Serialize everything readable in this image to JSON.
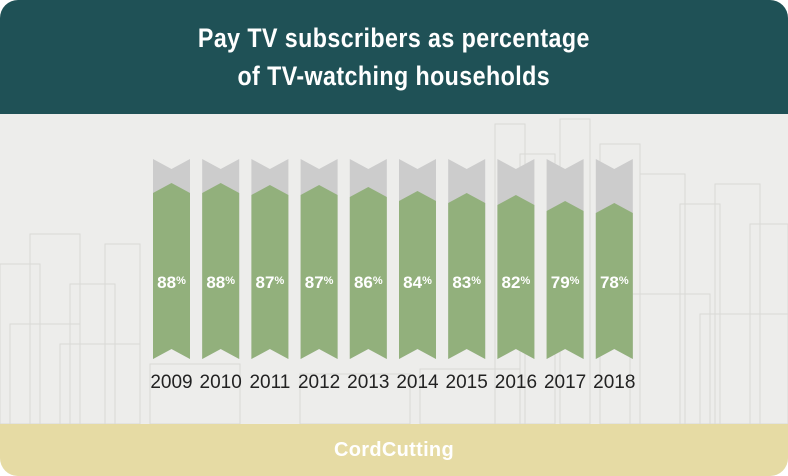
{
  "header": {
    "title_line1": "Pay TV subscribers as percentage",
    "title_line2": "of TV-watching households"
  },
  "footer": {
    "logo_text": "CordCutting"
  },
  "colors": {
    "header_bg": "#1f5156",
    "panel_bg": "#ededeb",
    "bar_fill": "#92b07c",
    "bar_remainder": "#cccccc",
    "footer_bg": "#e6dba4"
  },
  "chart_data": {
    "type": "bar",
    "title": "Pay TV subscribers as percentage of TV-watching households",
    "categories": [
      "2009",
      "2010",
      "2011",
      "2012",
      "2013",
      "2014",
      "2015",
      "2016",
      "2017",
      "2018"
    ],
    "values": [
      88,
      88,
      87,
      87,
      86,
      84,
      83,
      82,
      79,
      78
    ],
    "value_suffix": "%",
    "ylim": [
      0,
      100
    ],
    "grid": false,
    "legend": "none"
  }
}
